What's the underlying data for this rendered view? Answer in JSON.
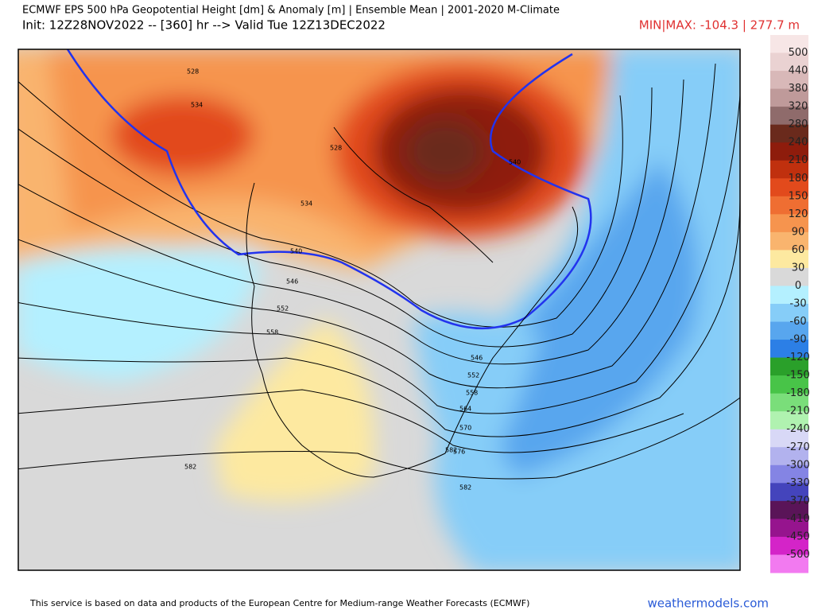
{
  "header": {
    "line1": "ECMWF EPS 500 hPa Geopotential Height [dm] & Anomaly [m] | Ensemble Mean | 2001-2020 M-Climate",
    "line2": "Init: 12Z28NOV2022 -- [360] hr --> Valid Tue 12Z13DEC2022",
    "minmax": "MIN|MAX: -104.3 | 277.7 m"
  },
  "colorbar": {
    "levels": [
      500,
      440,
      380,
      320,
      280,
      240,
      210,
      180,
      150,
      120,
      90,
      60,
      30,
      0,
      -30,
      -60,
      -90,
      -120,
      -150,
      -180,
      -210,
      -240,
      -270,
      -300,
      -330,
      -370,
      -410,
      -450,
      -500
    ],
    "colors": [
      "#f7e6e6",
      "#ead2d2",
      "#d8b8b8",
      "#bf9a9a",
      "#8f6b6b",
      "#6a2a1c",
      "#8e1c0c",
      "#c0300e",
      "#e24a1c",
      "#ef6e32",
      "#f6944e",
      "#f9b46e",
      "#fde9a0",
      "#d9d9d9",
      "#b4f0ff",
      "#86cdf8",
      "#58a6ee",
      "#2c7fe6",
      "#2aa02a",
      "#48c448",
      "#7ade7a",
      "#b0f2b0",
      "#d8d8f6",
      "#b2b2ee",
      "#8484e4",
      "#4444bc",
      "#5a1458",
      "#96148e",
      "#d424c8",
      "#f27af0"
    ]
  },
  "contour_labels": [
    "528",
    "534",
    "528",
    "534",
    "540",
    "546",
    "552",
    "558",
    "540",
    "546",
    "552",
    "558",
    "564",
    "570",
    "576",
    "582",
    "582",
    "582"
  ],
  "footer": {
    "notice": "This service is based on data and products of the European Centre for Medium-range Weather Forecasts (ECMWF)",
    "site": "weathermodels.com"
  }
}
